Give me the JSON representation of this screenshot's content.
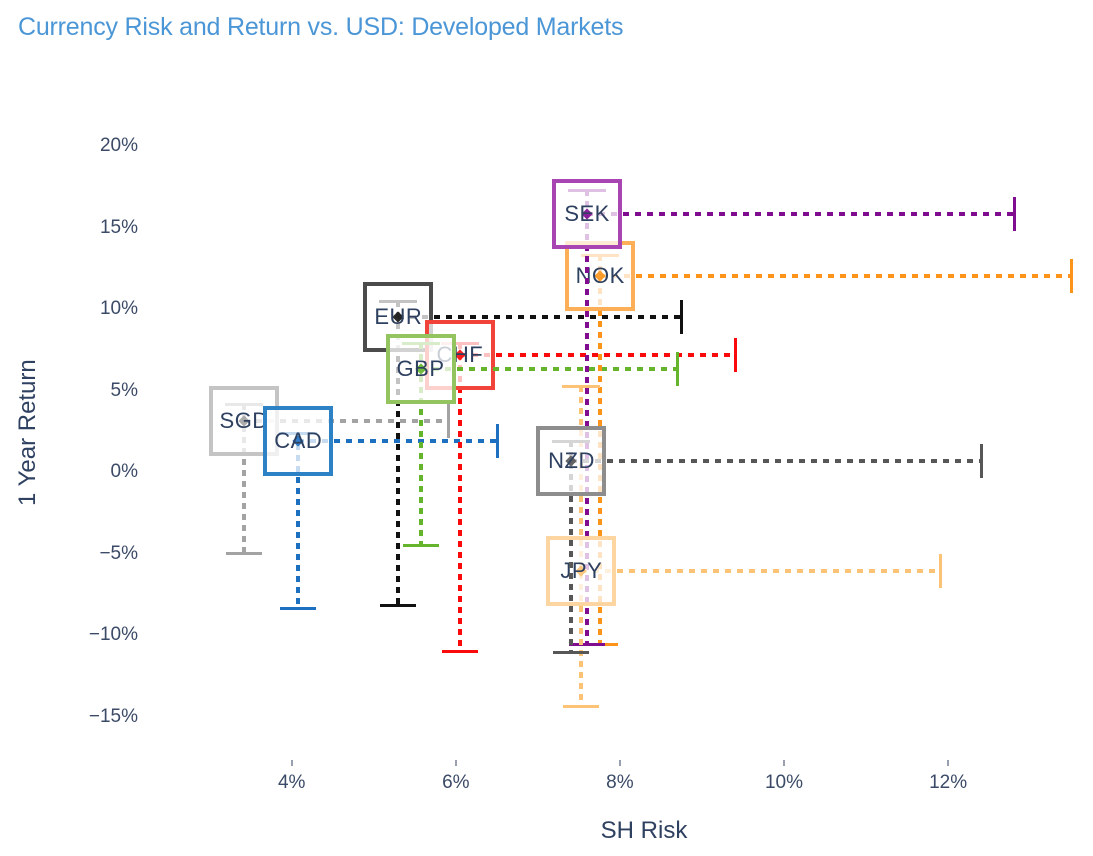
{
  "title": "Currency Risk and Return vs. USD: Developed Markets",
  "colors": {
    "title_text": "#4b96d6",
    "axis_text": "#2f4161",
    "tick_text": "#3b4a66",
    "background": "#ffffff"
  },
  "chart_data": {
    "type": "scatter",
    "title": "Currency Risk and Return vs. USD: Developed Markets",
    "xlabel": "SH Risk",
    "ylabel": "1 Year Return",
    "units": "percent",
    "grid": false,
    "legend": "none",
    "xlim": [
      2.3,
      13.8
    ],
    "ylim": [
      -16.7,
      21.6
    ],
    "x_ticks": [
      "4%",
      "6%",
      "8%",
      "10%",
      "12%"
    ],
    "x_tick_values": [
      4,
      6,
      8,
      10,
      12
    ],
    "y_ticks": [
      "20%",
      "15%",
      "10%",
      "5%",
      "0%",
      "−5%",
      "−10%",
      "−15%"
    ],
    "y_tick_values": [
      20,
      15,
      10,
      5,
      0,
      -5,
      -10,
      -15
    ],
    "series": [
      {
        "label": "SGD",
        "risk": 3.42,
        "return": 3.1,
        "return_high": 4.2,
        "return_low": -4.9,
        "risk_max": 5.9,
        "box_color": "#c4c4c4",
        "line_color": "#a3a3a3"
      },
      {
        "label": "CAD",
        "risk": 4.08,
        "return": 1.9,
        "return_high": 2.4,
        "return_low": -8.3,
        "risk_max": 6.5,
        "box_color": "#2d82c6",
        "line_color": "#1d6fc0"
      },
      {
        "label": "EUR",
        "risk": 5.3,
        "return": 9.5,
        "return_high": 10.5,
        "return_low": -8.1,
        "risk_max": 8.75,
        "box_color": "#4b4b4b",
        "line_color": "#111111"
      },
      {
        "label": "CHF",
        "risk": 6.05,
        "return": 7.2,
        "return_high": 7.9,
        "return_low": -10.9,
        "risk_max": 9.4,
        "box_color": "#f2433b",
        "line_color": "#fa0a0a"
      },
      {
        "label": "GBP",
        "risk": 5.57,
        "return": 6.3,
        "return_high": 7.9,
        "return_low": -4.4,
        "risk_max": 8.7,
        "box_color": "#93c45f",
        "line_color": "#64b42c"
      },
      {
        "label": "NOK",
        "risk": 7.76,
        "return": 12.0,
        "return_high": 13.3,
        "return_low": -10.5,
        "risk_max": 13.5,
        "box_color": "#fcaf56",
        "line_color": "#fb9418"
      },
      {
        "label": "SEK",
        "risk": 7.6,
        "return": 15.8,
        "return_high": 17.3,
        "return_low": -10.5,
        "risk_max": 12.8,
        "box_color": "#a945b3",
        "line_color": "#800d90"
      },
      {
        "label": "JPY",
        "risk": 7.53,
        "return": -6.1,
        "return_high": 5.3,
        "return_low": -14.3,
        "risk_max": 11.9,
        "box_color": "#fdd5a0",
        "line_color": "#fcc275"
      },
      {
        "label": "NZD",
        "risk": 7.41,
        "return": 0.7,
        "return_high": 1.9,
        "return_low": -11.0,
        "risk_max": 12.4,
        "box_color": "#8d8d8d",
        "line_color": "#575757"
      }
    ]
  }
}
